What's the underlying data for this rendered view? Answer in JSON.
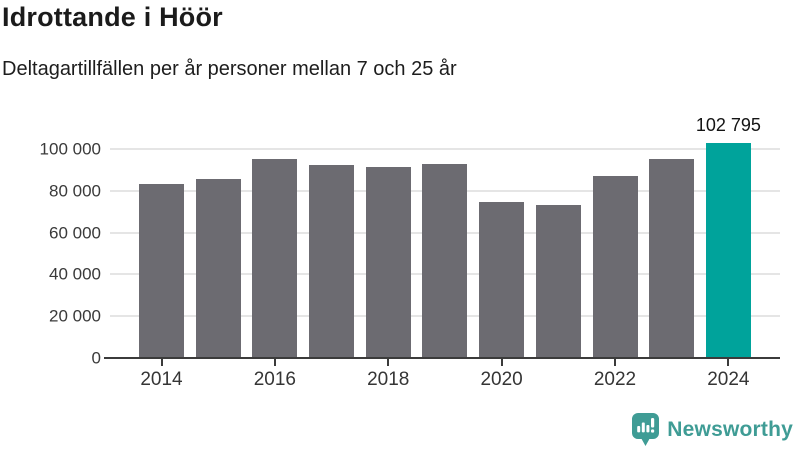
{
  "chart_data": {
    "type": "bar",
    "title": "Idrottande i Höör",
    "subtitle": "Deltagartillfällen per år personer mellan 7 och 25 år",
    "categories": [
      "2014",
      "2015",
      "2016",
      "2017",
      "2018",
      "2019",
      "2020",
      "2021",
      "2022",
      "2023",
      "2024"
    ],
    "values": [
      83000,
      85800,
      95400,
      92400,
      91500,
      92700,
      74500,
      73100,
      87100,
      95400,
      102795
    ],
    "x_tick_labels": [
      "2014",
      "2016",
      "2018",
      "2020",
      "2022",
      "2024"
    ],
    "y_ticks": [
      0,
      20000,
      40000,
      60000,
      80000,
      100000
    ],
    "y_tick_labels": [
      "0",
      "20 000",
      "40 000",
      "60 000",
      "80 000",
      "100 000"
    ],
    "ylim": [
      0,
      110000
    ],
    "grid": true,
    "bar_color": "#6c6b71",
    "highlight_color": "#00a39b",
    "highlight_category": "2024",
    "annotation": {
      "text": "102 795",
      "category": "2024"
    }
  },
  "footer": {
    "brand": "Newsworthy",
    "brand_color": "#3f9c95"
  }
}
